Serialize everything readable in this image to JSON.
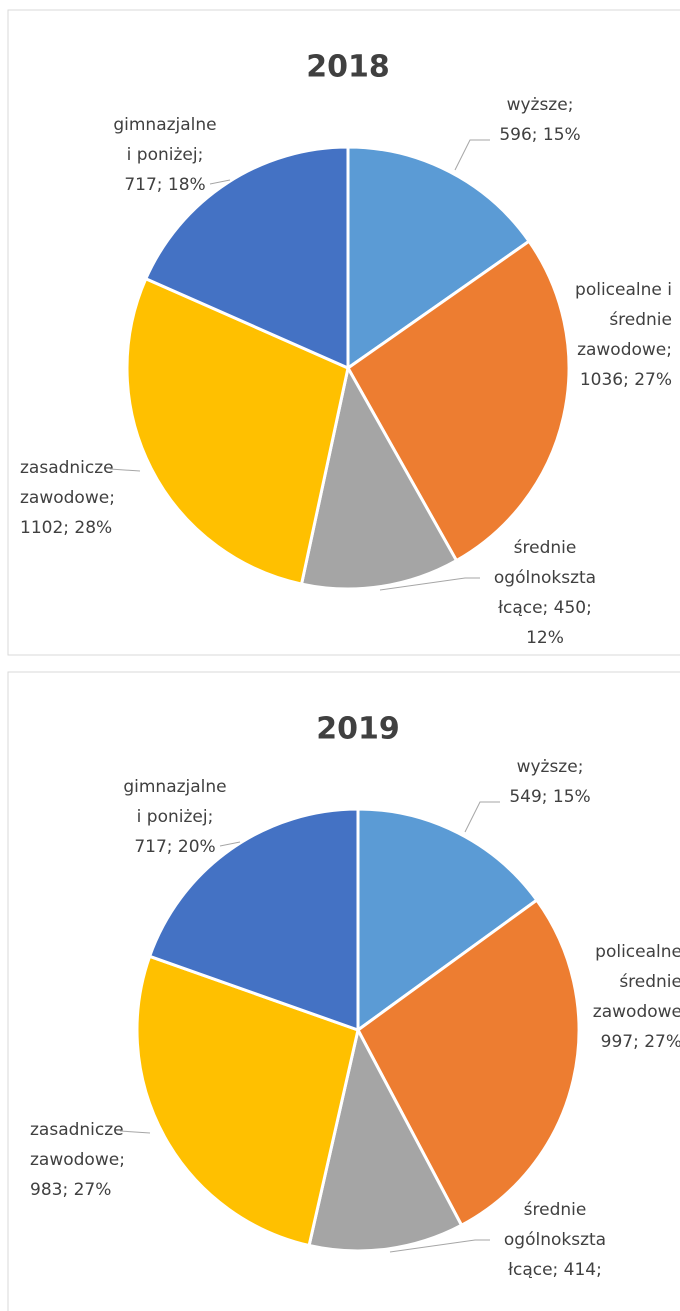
{
  "chart_data": [
    {
      "type": "pie",
      "title": "2018",
      "values": [
        596,
        1036,
        450,
        1102,
        717
      ],
      "colors": [
        "#5b9bd5",
        "#ed7d31",
        "#a5a5a5",
        "#ffc000",
        "#4472c4"
      ],
      "value_labels": [
        [
          "wyższe;",
          "596; 15%"
        ],
        [
          "policealne i",
          "średnie",
          "zawodowe;",
          "1036; 27%"
        ],
        [
          "średnie",
          "ogólnokszta",
          "łcące; 450;",
          "12%"
        ],
        [
          "zasadnicze",
          "zawodowe;",
          "1102; 28%"
        ],
        [
          "gimnazjalne",
          "i poniżej;",
          "717; 18%"
        ]
      ]
    },
    {
      "type": "pie",
      "title": "2019",
      "values": [
        549,
        997,
        414,
        983,
        717
      ],
      "colors": [
        "#5b9bd5",
        "#ed7d31",
        "#a5a5a5",
        "#ffc000",
        "#4472c4"
      ],
      "value_labels": [
        [
          "wyższe;",
          "549; 15%"
        ],
        [
          "policealne",
          "średnie",
          "zawodowe",
          "997; 27%"
        ],
        [
          "średnie",
          "ogólnokszta",
          "łcące; 414;"
        ],
        [
          "zasadnicze",
          "zawodowe;",
          "983; 27%"
        ],
        [
          "gimnazjalne",
          "i poniżej;",
          "717; 20%"
        ]
      ]
    }
  ]
}
